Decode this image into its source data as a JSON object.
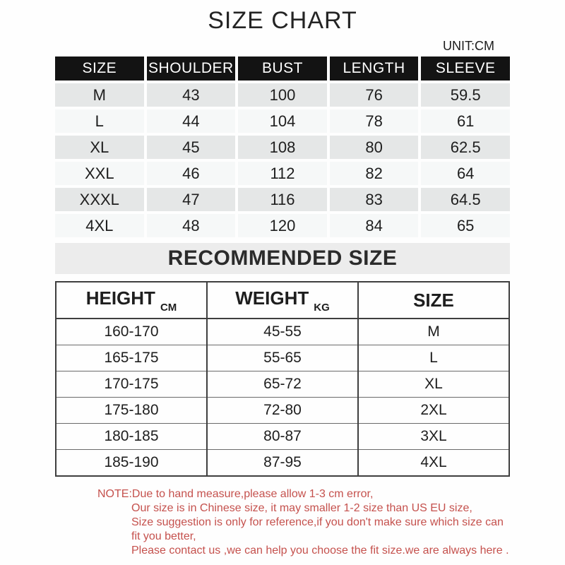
{
  "page": {
    "title": "SIZE CHART",
    "unit_label": "UNIT:CM",
    "background": "#fefefe"
  },
  "size_table": {
    "header_bg": "#131313",
    "header_text_color": "#ffffff",
    "row_colors": [
      "#e5e7e7",
      "#f6f8f8"
    ],
    "headers": [
      "SIZE",
      "SHOULDER",
      "BUST",
      "LENGTH",
      "SLEEVE"
    ],
    "rows": [
      [
        "M",
        "43",
        "100",
        "76",
        "59.5"
      ],
      [
        "L",
        "44",
        "104",
        "78",
        "61"
      ],
      [
        "XL",
        "45",
        "108",
        "80",
        "62.5"
      ],
      [
        "XXL",
        "46",
        "112",
        "82",
        "64"
      ],
      [
        "XXXL",
        "47",
        "116",
        "83",
        "64.5"
      ],
      [
        "4XL",
        "48",
        "120",
        "84",
        "65"
      ]
    ]
  },
  "recommended": {
    "title": "RECOMMENDED SIZE",
    "title_bg": "#ececec",
    "columns": [
      {
        "label": "HEIGHT",
        "unit": "CM"
      },
      {
        "label": "WEIGHT",
        "unit": "KG"
      },
      {
        "label": "SIZE",
        "unit": ""
      }
    ],
    "rows": [
      [
        "160-170",
        "45-55",
        "M"
      ],
      [
        "165-175",
        "55-65",
        "L"
      ],
      [
        "170-175",
        "65-72",
        "XL"
      ],
      [
        "175-180",
        "72-80",
        "2XL"
      ],
      [
        "180-185",
        "80-87",
        "3XL"
      ],
      [
        "185-190",
        "87-95",
        "4XL"
      ]
    ]
  },
  "note": {
    "color": "#c5514d",
    "lines": [
      "NOTE:Due to hand measure,please allow 1-3 cm error,",
      "Our size is in Chinese size, it may smaller 1-2 size than US EU size,",
      "Size suggestion is only for reference,if you don't make sure which size can fit you better,",
      "Please contact  us ,we can help you choose the fit size.we are  always here ."
    ]
  }
}
